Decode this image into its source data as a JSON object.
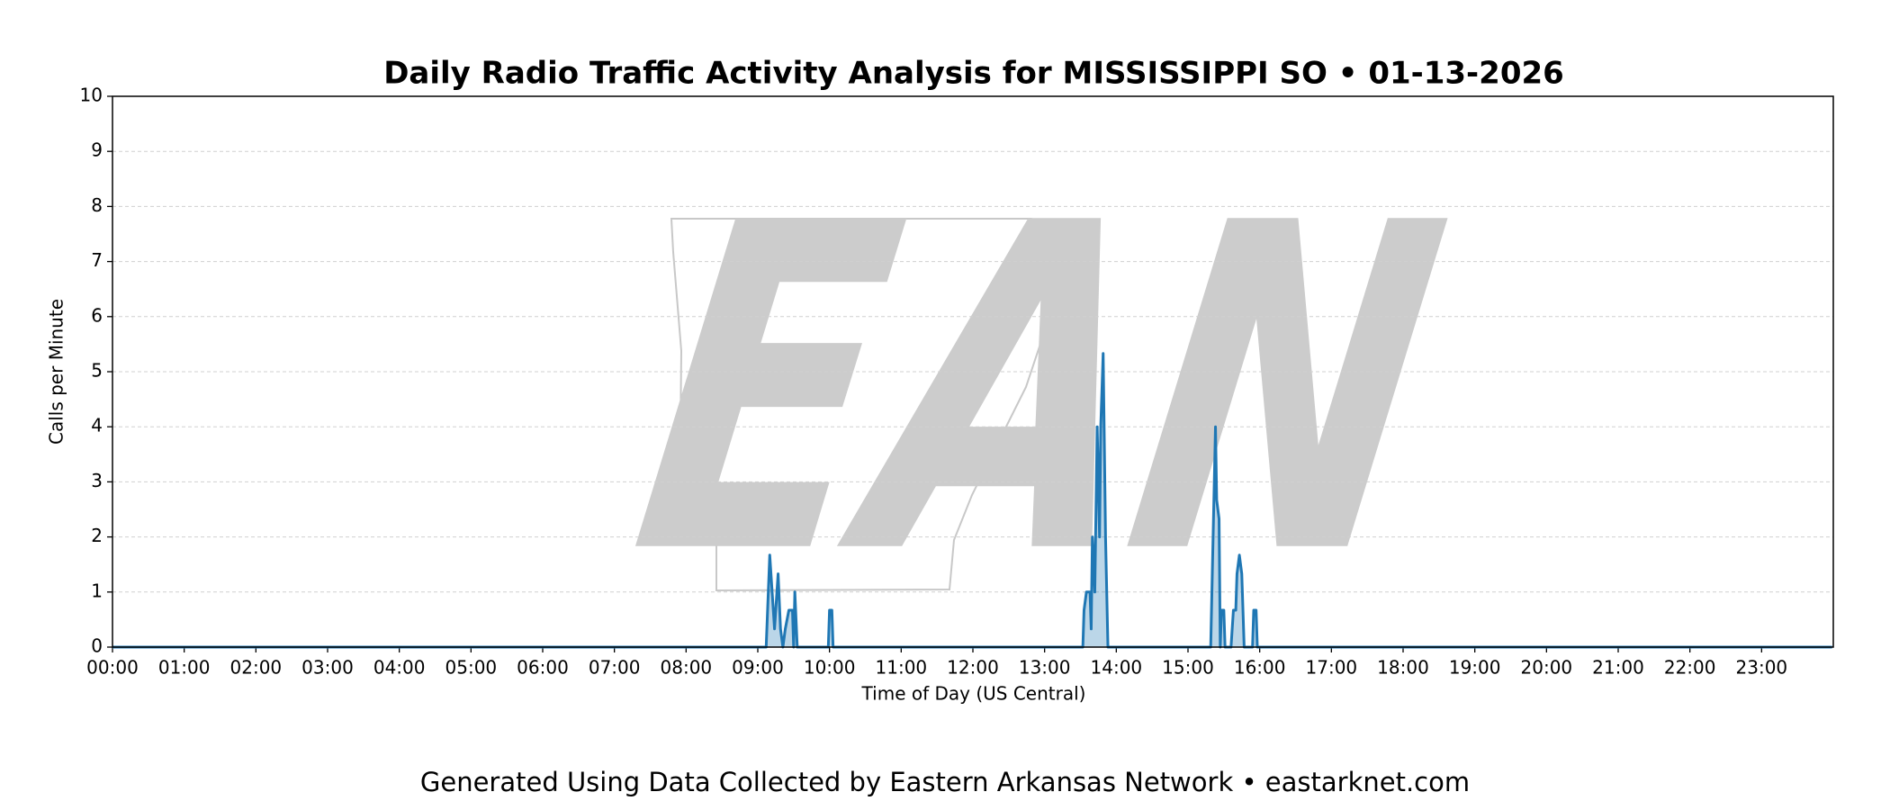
{
  "chart_data": {
    "type": "area",
    "title": "Daily Radio Traffic Activity Analysis for MISSISSIPPI SO • 01-13-2026",
    "xlabel": "Time of Day (US Central)",
    "ylabel": "Calls per Minute",
    "footer": "Generated Using Data Collected by Eastern Arkansas Network • eastarknet.com",
    "watermark": "EAN",
    "grid": true,
    "xlim": [
      0,
      1440
    ],
    "ylim": [
      0,
      10
    ],
    "yticks": [
      0,
      1,
      2,
      3,
      4,
      5,
      6,
      7,
      8,
      9,
      10
    ],
    "xticks": [
      {
        "value": 0,
        "label": "00:00"
      },
      {
        "value": 60,
        "label": "01:00"
      },
      {
        "value": 120,
        "label": "02:00"
      },
      {
        "value": 180,
        "label": "03:00"
      },
      {
        "value": 240,
        "label": "04:00"
      },
      {
        "value": 300,
        "label": "05:00"
      },
      {
        "value": 360,
        "label": "06:00"
      },
      {
        "value": 420,
        "label": "07:00"
      },
      {
        "value": 480,
        "label": "08:00"
      },
      {
        "value": 540,
        "label": "09:00"
      },
      {
        "value": 600,
        "label": "10:00"
      },
      {
        "value": 660,
        "label": "11:00"
      },
      {
        "value": 720,
        "label": "12:00"
      },
      {
        "value": 780,
        "label": "13:00"
      },
      {
        "value": 840,
        "label": "14:00"
      },
      {
        "value": 900,
        "label": "15:00"
      },
      {
        "value": 960,
        "label": "16:00"
      },
      {
        "value": 1020,
        "label": "17:00"
      },
      {
        "value": 1080,
        "label": "18:00"
      },
      {
        "value": 1140,
        "label": "19:00"
      },
      {
        "value": 1200,
        "label": "20:00"
      },
      {
        "value": 1260,
        "label": "21:00"
      },
      {
        "value": 1320,
        "label": "22:00"
      },
      {
        "value": 1380,
        "label": "23:00"
      }
    ],
    "x": [
      0,
      547,
      550,
      554,
      557,
      559,
      561,
      563,
      566,
      569,
      570,
      571,
      573,
      599,
      600,
      602,
      603,
      812,
      813,
      815,
      818,
      819,
      820,
      822,
      824,
      825,
      826,
      827,
      829,
      831,
      833,
      919,
      923,
      924,
      926,
      927,
      928,
      930,
      931,
      936,
      938,
      940,
      941,
      943,
      945,
      947,
      954,
      955,
      957,
      958,
      1439
    ],
    "series": [
      {
        "color": "#1f77b4",
        "values": [
          0,
          0,
          1.67,
          0.33,
          1.33,
          0.33,
          0,
          0.33,
          0.67,
          0.67,
          0,
          1,
          0,
          0,
          0.67,
          0.67,
          0,
          0,
          0.67,
          1,
          1,
          0.33,
          2,
          1,
          4,
          3,
          2,
          4,
          5.33,
          2,
          0,
          0,
          4,
          2.67,
          2.33,
          0,
          0.67,
          0.67,
          0,
          0,
          0.67,
          0.67,
          1.33,
          1.67,
          1.33,
          0,
          0,
          0.67,
          0.67,
          0,
          0
        ]
      }
    ]
  }
}
